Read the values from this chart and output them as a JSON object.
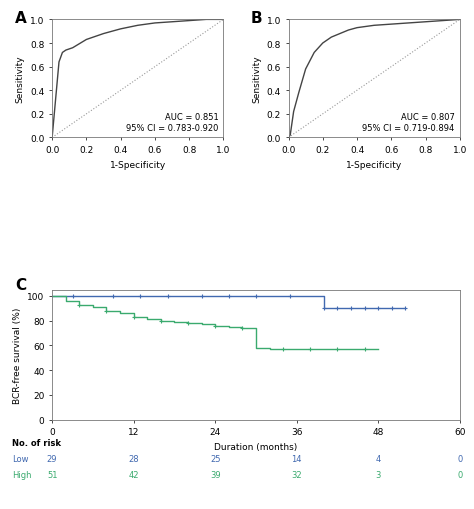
{
  "panel_A": {
    "label": "A",
    "auc_text": "AUC = 0.851\n95% CI = 0.783-0.920",
    "xlabel": "1-Specificity",
    "ylabel": "Sensitivity",
    "roc_x": [
      0.0,
      0.04,
      0.06,
      0.08,
      0.12,
      0.2,
      0.3,
      0.4,
      0.5,
      0.6,
      0.7,
      0.8,
      0.9,
      1.0
    ],
    "roc_y": [
      0.0,
      0.64,
      0.72,
      0.74,
      0.76,
      0.83,
      0.88,
      0.92,
      0.95,
      0.97,
      0.98,
      0.99,
      1.0,
      1.0
    ],
    "xticks": [
      0.0,
      0.2,
      0.4,
      0.6,
      0.8,
      1.0
    ],
    "yticks": [
      0.0,
      0.2,
      0.4,
      0.6,
      0.8,
      1.0
    ],
    "xlim": [
      0.0,
      1.0
    ],
    "ylim": [
      0.0,
      1.0
    ]
  },
  "panel_B": {
    "label": "B",
    "auc_text": "AUC = 0.807\n95% CI = 0.719-0.894",
    "xlabel": "1-Specificity",
    "ylabel": "Sensitivity",
    "roc_x": [
      0.0,
      0.01,
      0.03,
      0.06,
      0.1,
      0.15,
      0.2,
      0.25,
      0.3,
      0.35,
      0.4,
      0.5,
      0.6,
      0.7,
      0.8,
      0.9,
      1.0
    ],
    "roc_y": [
      0.0,
      0.02,
      0.22,
      0.38,
      0.58,
      0.72,
      0.8,
      0.85,
      0.88,
      0.91,
      0.93,
      0.95,
      0.96,
      0.97,
      0.98,
      0.99,
      1.0
    ],
    "xticks": [
      0.0,
      0.2,
      0.4,
      0.6,
      0.8,
      1.0
    ],
    "yticks": [
      0.0,
      0.2,
      0.4,
      0.6,
      0.8,
      1.0
    ],
    "xlim": [
      0.0,
      1.0
    ],
    "ylim": [
      0.0,
      1.0
    ]
  },
  "panel_C": {
    "label": "C",
    "xlabel": "Duration (months)",
    "ylabel": "BCR-free survival (%)",
    "xlim": [
      0,
      60
    ],
    "ylim": [
      0,
      105
    ],
    "xticks": [
      0,
      12,
      24,
      36,
      48,
      60
    ],
    "yticks": [
      0,
      20,
      40,
      60,
      80,
      100
    ],
    "low_color": "#4169b0",
    "high_color": "#3aaa6e",
    "low_times": [
      0,
      3,
      5,
      7,
      9,
      11,
      13,
      15,
      17,
      19,
      22,
      26,
      30,
      35,
      38,
      40,
      42,
      44,
      46,
      48,
      50,
      52
    ],
    "low_surv": [
      100,
      100,
      100,
      100,
      100,
      100,
      100,
      100,
      100,
      100,
      100,
      100,
      100,
      100,
      100,
      90,
      90,
      90,
      90,
      90,
      90,
      90
    ],
    "low_censors": [
      3,
      9,
      13,
      17,
      22,
      26,
      30,
      35,
      40,
      42,
      44,
      46,
      48,
      50,
      52
    ],
    "high_times": [
      0,
      2,
      4,
      6,
      8,
      10,
      12,
      14,
      16,
      18,
      20,
      22,
      24,
      26,
      28,
      30,
      32,
      34,
      36,
      38,
      40,
      42,
      44,
      46,
      48
    ],
    "high_surv": [
      100,
      96,
      93,
      91,
      88,
      86,
      83,
      81,
      80,
      79,
      78,
      77,
      76,
      75,
      74,
      58,
      57,
      57,
      57,
      57,
      57,
      57,
      57,
      57,
      57
    ],
    "high_censors": [
      4,
      8,
      12,
      16,
      20,
      24,
      28,
      34,
      38,
      42,
      46
    ],
    "risk_times": [
      0,
      12,
      24,
      36,
      48,
      60
    ],
    "low_risk": [
      29,
      28,
      25,
      14,
      4,
      0
    ],
    "high_risk": [
      51,
      42,
      39,
      32,
      3,
      0
    ],
    "no_of_risk_label": "No. of risk",
    "low_label": "Low",
    "high_label": "High"
  },
  "line_color": "#444444",
  "diag_color": "#999999",
  "bg_color": "#ffffff",
  "font_size": 6.5,
  "tick_label_size": 6.5
}
